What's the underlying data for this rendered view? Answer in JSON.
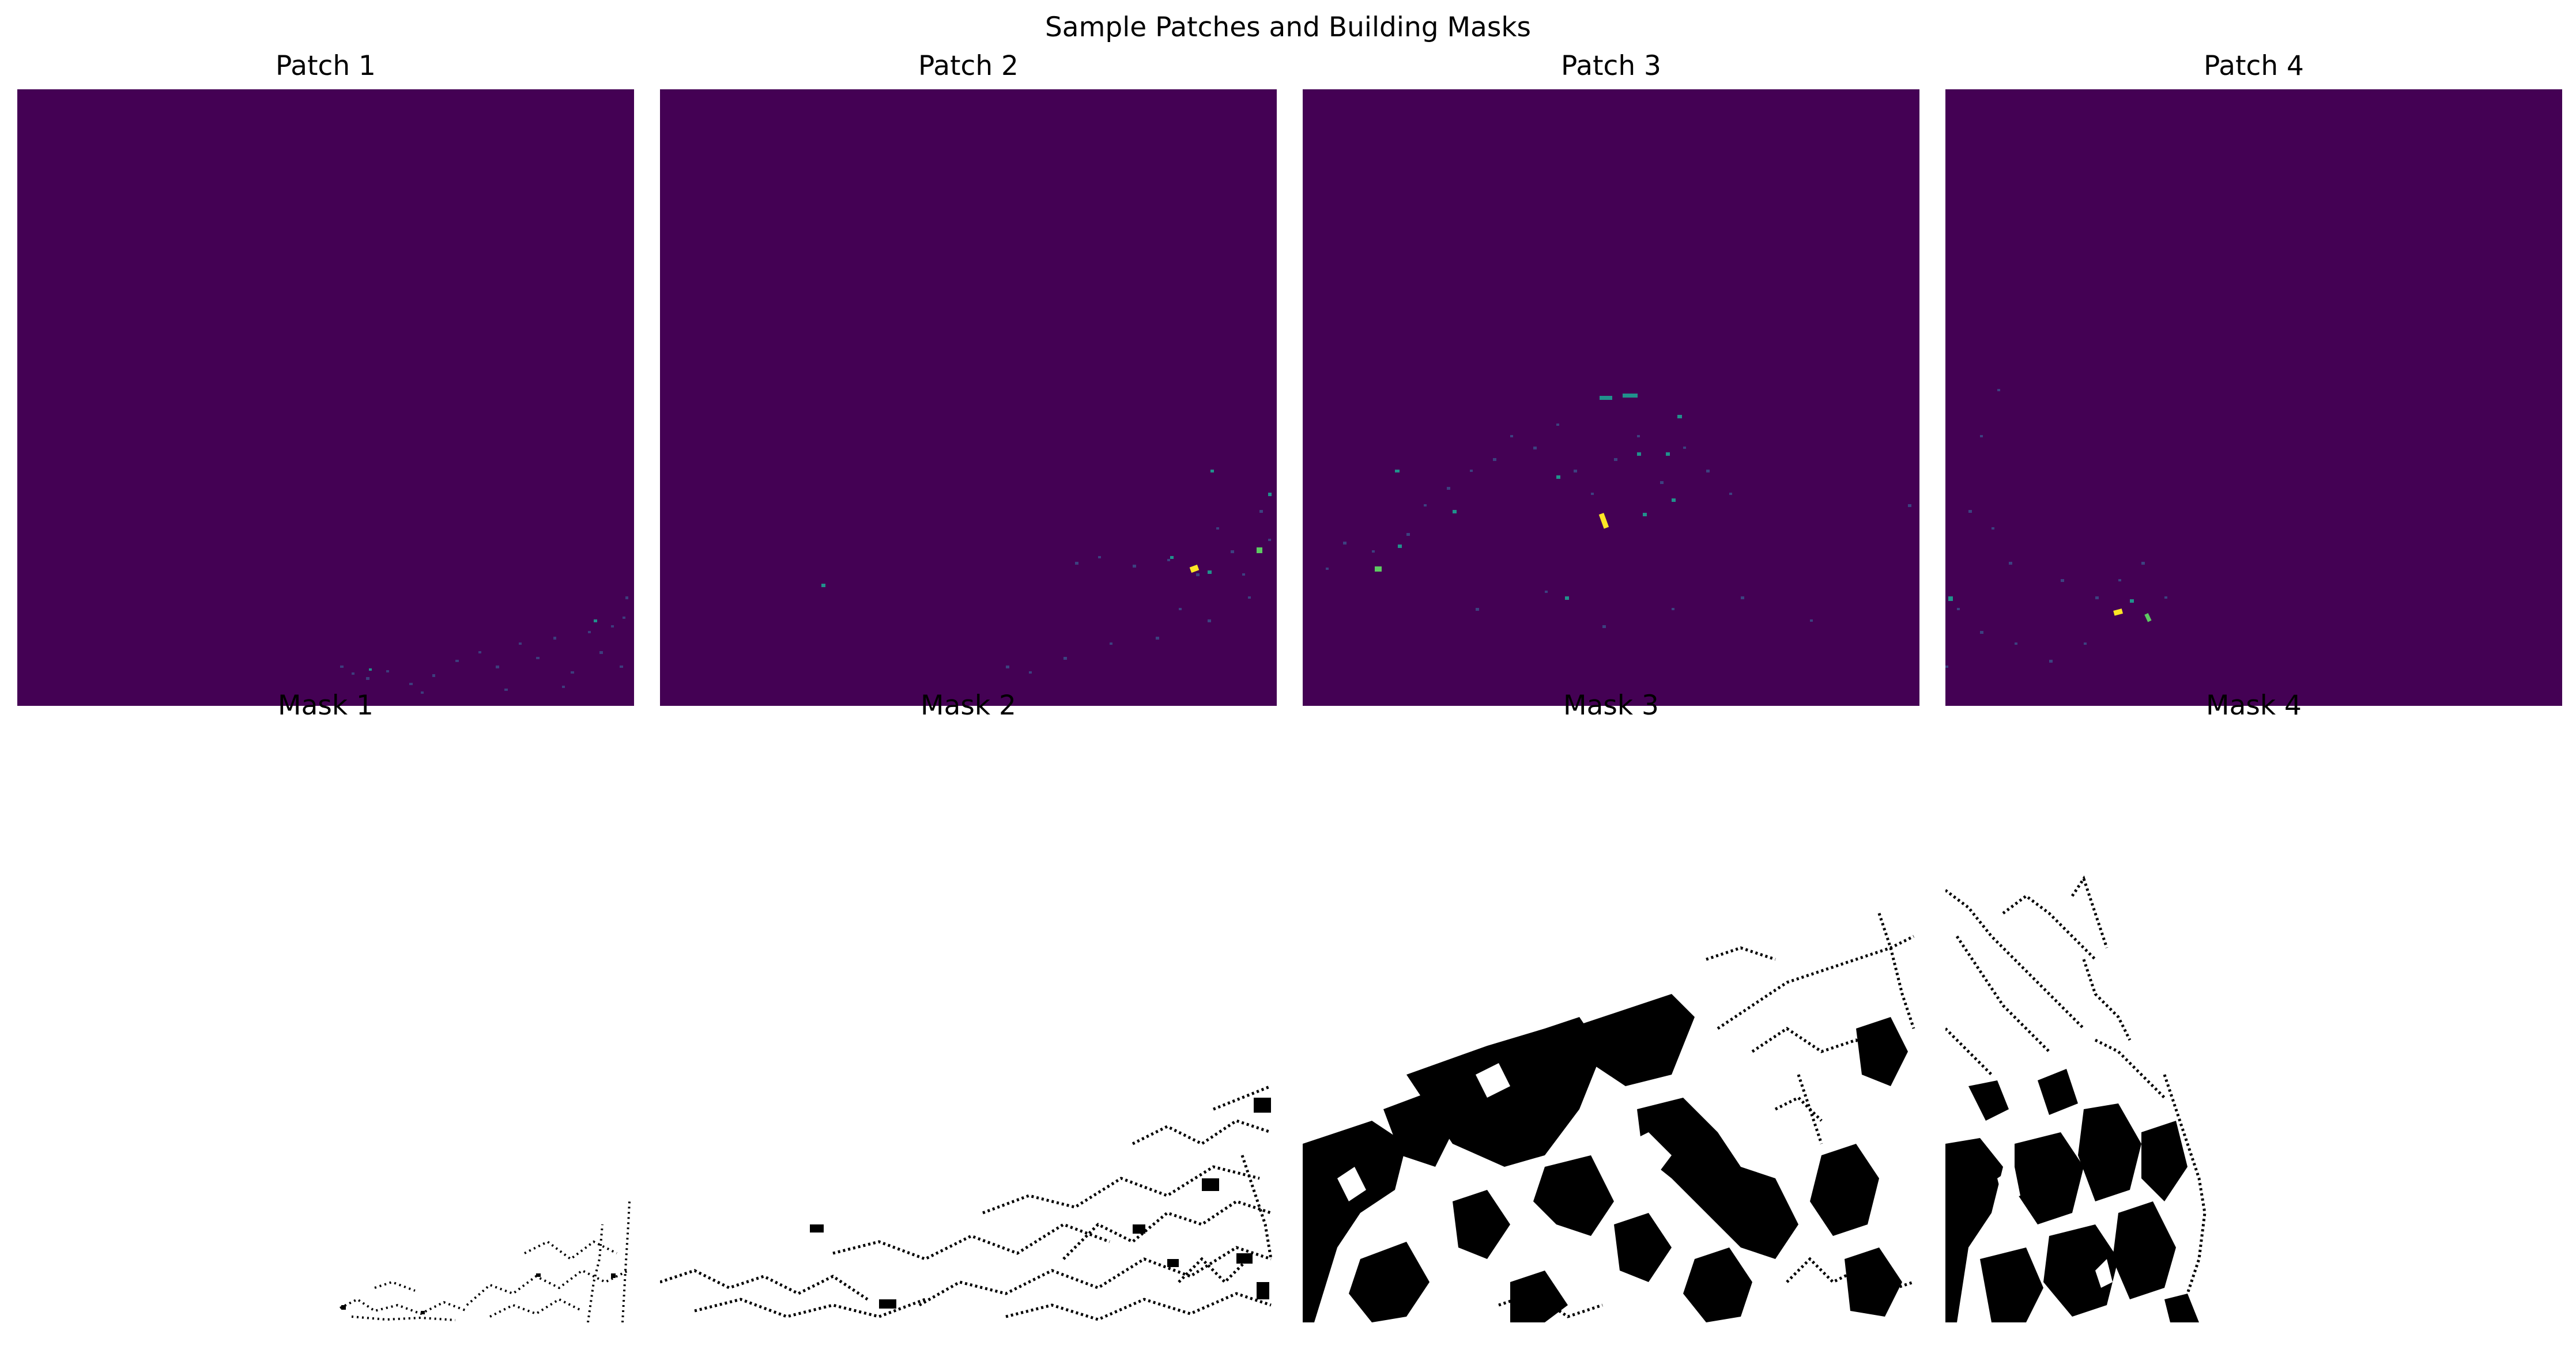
{
  "figure": {
    "title": "Sample Patches and Building Masks"
  },
  "patches": [
    {
      "title": "Patch 1"
    },
    {
      "title": "Patch 2"
    },
    {
      "title": "Patch 3"
    },
    {
      "title": "Patch 4"
    }
  ],
  "masks": [
    {
      "title": "Mask 1"
    },
    {
      "title": "Mask 2"
    },
    {
      "title": "Mask 3"
    },
    {
      "title": "Mask 4"
    }
  ],
  "colors": {
    "patch_background": "#440154",
    "low_value": "#3b528b",
    "mid_value": "#21918c",
    "high_value": "#5ec962",
    "max_value": "#fde725",
    "mask_background": "#ffffff",
    "mask_foreground": "#000000"
  }
}
